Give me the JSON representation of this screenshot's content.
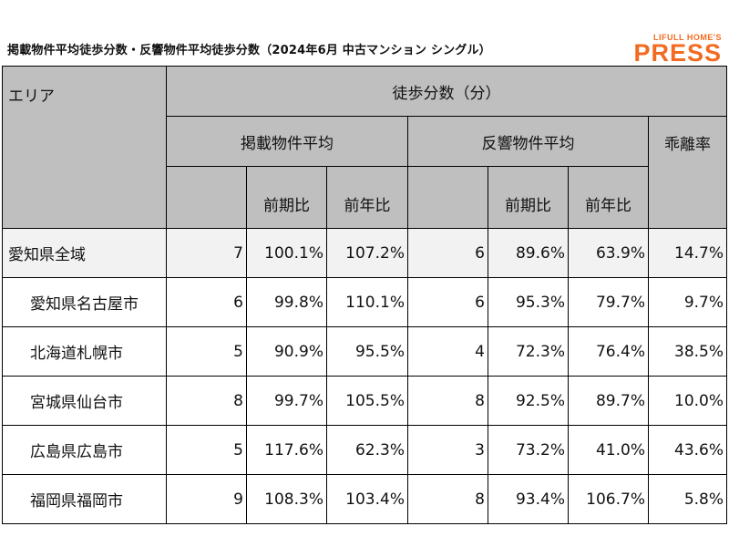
{
  "header": {
    "title": "掲載物件平均徒歩分数・反響物件平均徒歩分数（2024年6月 中古マンション シングル）",
    "logo_top": "LIFULL HOME'S",
    "logo_main": "PRESS"
  },
  "table": {
    "col_area": "エリア",
    "col_walk": "徒歩分数（分）",
    "col_listed_avg": "掲載物件平均",
    "col_response_avg": "反響物件平均",
    "col_divergence": "乖離率",
    "col_prev_period": "前期比",
    "col_prev_year": "前年比",
    "rows": [
      {
        "area": "愛知県全域",
        "listed": "7",
        "listed_qoq": "100.1%",
        "listed_yoy": "107.2%",
        "resp": "6",
        "resp_qoq": "89.6%",
        "resp_yoy": "63.9%",
        "div": "14.7%"
      },
      {
        "area": "愛知県名古屋市",
        "listed": "6",
        "listed_qoq": "99.8%",
        "listed_yoy": "110.1%",
        "resp": "6",
        "resp_qoq": "95.3%",
        "resp_yoy": "79.7%",
        "div": "9.7%"
      },
      {
        "area": "北海道札幌市",
        "listed": "5",
        "listed_qoq": "90.9%",
        "listed_yoy": "95.5%",
        "resp": "4",
        "resp_qoq": "72.3%",
        "resp_yoy": "76.4%",
        "div": "38.5%"
      },
      {
        "area": "宮城県仙台市",
        "listed": "8",
        "listed_qoq": "99.7%",
        "listed_yoy": "105.5%",
        "resp": "8",
        "resp_qoq": "92.5%",
        "resp_yoy": "89.7%",
        "div": "10.0%"
      },
      {
        "area": "広島県広島市",
        "listed": "5",
        "listed_qoq": "117.6%",
        "listed_yoy": "62.3%",
        "resp": "3",
        "resp_qoq": "73.2%",
        "resp_yoy": "41.0%",
        "div": "43.6%"
      },
      {
        "area": "福岡県福岡市",
        "listed": "9",
        "listed_qoq": "108.3%",
        "listed_yoy": "103.4%",
        "resp": "8",
        "resp_qoq": "93.4%",
        "resp_yoy": "106.7%",
        "div": "5.8%"
      }
    ]
  }
}
